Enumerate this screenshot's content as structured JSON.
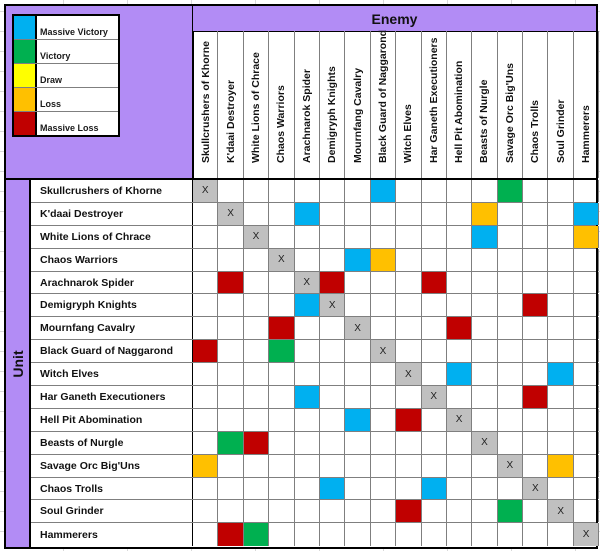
{
  "legend": {
    "items": [
      {
        "label": "Massive Victory",
        "color": "#00b0f0",
        "key": "MV"
      },
      {
        "label": "Victory",
        "color": "#00b050",
        "key": "V"
      },
      {
        "label": "Draw",
        "color": "#ffff00",
        "key": "D"
      },
      {
        "label": "Loss",
        "color": "#ffc000",
        "key": "L"
      },
      {
        "label": "Massive Loss",
        "color": "#c00000",
        "key": "ML"
      }
    ]
  },
  "colors": {
    "header_purple": "#b28cf5",
    "self_gray": "#c0c0c0"
  },
  "header": {
    "enemy_label": "Enemy",
    "unit_label": "Unit"
  },
  "units": [
    "Skullcrushers of Khorne",
    "K'daai Destroyer",
    "White Lions of Chrace",
    "Chaos Warriors",
    "Arachnarok Spider",
    "Demigryph Knights",
    "Mournfang Cavalry",
    "Black Guard of Naggarond",
    "Witch Elves",
    "Har Ganeth Executioners",
    "Hell Pit Abomination",
    "Beasts of Nurgle",
    "Savage Orc Big'Uns",
    "Chaos Trolls",
    "Soul Grinder",
    "Hammerers"
  ],
  "self_mark": "X",
  "matrix": [
    [
      "X",
      "",
      "",
      "",
      "",
      "",
      "",
      "MV",
      "",
      "",
      "",
      "",
      "V",
      "",
      "",
      ""
    ],
    [
      "",
      "X",
      "",
      "",
      "MV",
      "",
      "",
      "",
      "",
      "",
      "",
      "L",
      "",
      "",
      "",
      "MV"
    ],
    [
      "",
      "",
      "X",
      "",
      "",
      "",
      "",
      "",
      "",
      "",
      "",
      "MV",
      "",
      "",
      "",
      "L"
    ],
    [
      "",
      "",
      "",
      "X",
      "",
      "",
      "MV",
      "L",
      "",
      "",
      "",
      "",
      "",
      "",
      "",
      ""
    ],
    [
      "",
      "ML",
      "",
      "",
      "X",
      "ML",
      "",
      "",
      "",
      "ML",
      "",
      "",
      "",
      "",
      "",
      ""
    ],
    [
      "",
      "",
      "",
      "",
      "MV",
      "X",
      "",
      "",
      "",
      "",
      "",
      "",
      "",
      "ML",
      "",
      ""
    ],
    [
      "",
      "",
      "",
      "ML",
      "",
      "",
      "X",
      "",
      "",
      "",
      "ML",
      "",
      "",
      "",
      "",
      ""
    ],
    [
      "ML",
      "",
      "",
      "V",
      "",
      "",
      "",
      "X",
      "",
      "",
      "",
      "",
      "",
      "",
      "",
      ""
    ],
    [
      "",
      "",
      "",
      "",
      "",
      "",
      "",
      "",
      "X",
      "",
      "MV",
      "",
      "",
      "",
      "MV",
      ""
    ],
    [
      "",
      "",
      "",
      "",
      "MV",
      "",
      "",
      "",
      "",
      "X",
      "",
      "",
      "",
      "ML",
      "",
      ""
    ],
    [
      "",
      "",
      "",
      "",
      "",
      "",
      "MV",
      "",
      "ML",
      "",
      "X",
      "",
      "",
      "",
      "",
      ""
    ],
    [
      "",
      "V",
      "ML",
      "",
      "",
      "",
      "",
      "",
      "",
      "",
      "",
      "X",
      "",
      "",
      "",
      ""
    ],
    [
      "L",
      "",
      "",
      "",
      "",
      "",
      "",
      "",
      "",
      "",
      "",
      "",
      "X",
      "",
      "L",
      ""
    ],
    [
      "",
      "",
      "",
      "",
      "",
      "MV",
      "",
      "",
      "",
      "MV",
      "",
      "",
      "",
      "X",
      "",
      ""
    ],
    [
      "",
      "",
      "",
      "",
      "",
      "",
      "",
      "",
      "ML",
      "",
      "",
      "",
      "V",
      "",
      "X",
      ""
    ],
    [
      "",
      "ML",
      "V",
      "",
      "",
      "",
      "",
      "",
      "",
      "",
      "",
      "",
      "",
      "",
      "",
      "X"
    ]
  ]
}
